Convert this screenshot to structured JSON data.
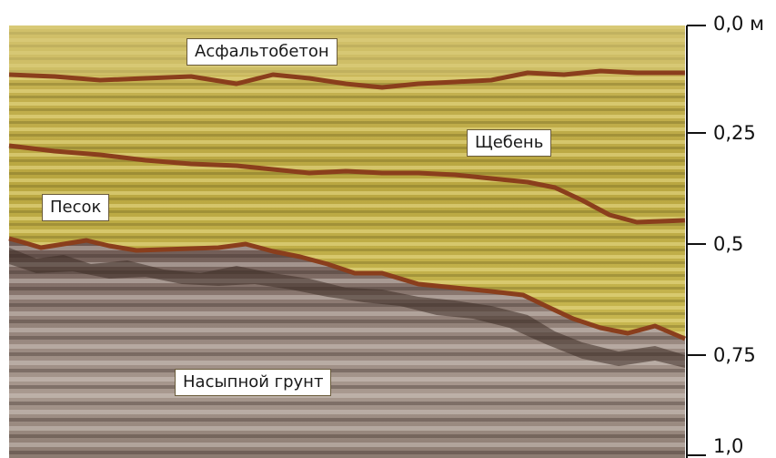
{
  "layers": [
    {
      "key": "asphalt",
      "label": "Асфальтобетон"
    },
    {
      "key": "gravel",
      "label": "Щебень"
    },
    {
      "key": "sand",
      "label": "Песок"
    },
    {
      "key": "fill",
      "label": "Насыпной грунт"
    }
  ],
  "depth_axis": {
    "unit": "м",
    "ticks": [
      {
        "value": 0.0,
        "label": "0,0 м"
      },
      {
        "value": 0.25,
        "label": "0,25"
      },
      {
        "value": 0.5,
        "label": "0,5"
      },
      {
        "value": 0.75,
        "label": "0,75"
      },
      {
        "value": 1.0,
        "label": "1,0"
      }
    ]
  },
  "colors": {
    "upper_material": "#c4b24a",
    "lower_material": "#8f7b71",
    "boundary": "#8a3e1c"
  }
}
